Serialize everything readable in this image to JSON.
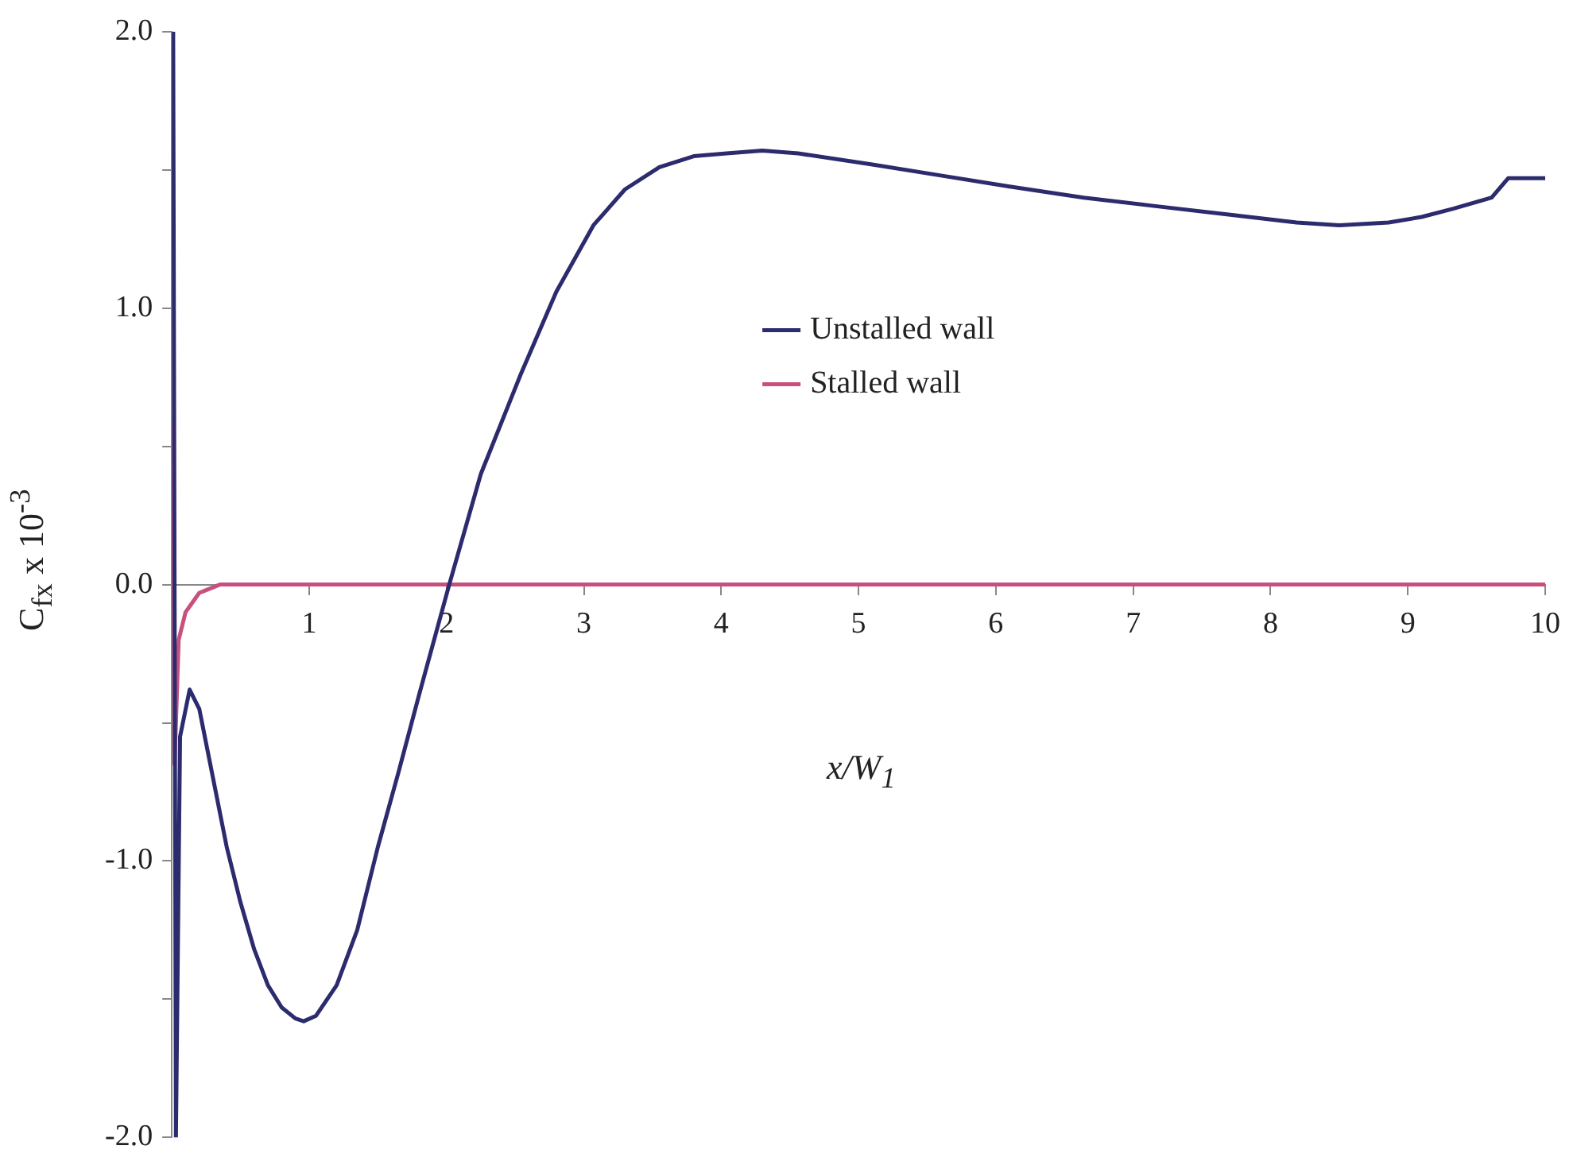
{
  "chart_data": {
    "type": "line",
    "xlabel": "x/W$_{1}$",
    "ylabel": "C$_{fx}$ x 10$^{-3}$",
    "xlim": [
      0,
      10
    ],
    "xticks": [
      1,
      2,
      3,
      4,
      5,
      6,
      7,
      8,
      9,
      10
    ],
    "ylim": [
      -2,
      2
    ],
    "yticks": [
      {
        "value": -2,
        "label": "-2.0"
      },
      {
        "value": -1.5,
        "label": null
      },
      {
        "value": -1,
        "label": "-1.0"
      },
      {
        "value": -0.5,
        "label": null
      },
      {
        "value": 0,
        "label": "0.0"
      },
      {
        "value": 0.5,
        "label": null
      },
      {
        "value": 1,
        "label": "1.0"
      },
      {
        "value": 1.5,
        "label": null
      },
      {
        "value": 2,
        "label": "2.0"
      }
    ],
    "grid": false,
    "legend": "top",
    "marker": "none",
    "line_style": "solid",
    "series": [
      {
        "name": "Unstalled wall",
        "color": "#2b2b6e",
        "x": [
          0.01,
          0.03,
          0.06,
          0.13,
          0.2,
          0.3,
          0.4,
          0.5,
          0.6,
          0.7,
          0.8,
          0.9,
          0.96,
          1.05,
          1.2,
          1.35,
          1.5,
          1.65,
          1.8,
          2.02,
          2.25,
          2.54,
          2.8,
          3.07,
          3.3,
          3.55,
          3.8,
          4.04,
          4.3,
          4.56,
          5.1,
          5.6,
          6.1,
          6.64,
          7.15,
          7.67,
          8.19,
          8.5,
          8.86,
          9.1,
          9.33,
          9.61,
          9.73,
          9.86,
          10
        ],
        "values": [
          2.0,
          -2.0,
          -0.55,
          -0.38,
          -0.45,
          -0.7,
          -0.95,
          -1.15,
          -1.32,
          -1.45,
          -1.53,
          -1.57,
          -1.58,
          -1.56,
          -1.45,
          -1.25,
          -0.95,
          -0.68,
          -0.4,
          0.0,
          0.4,
          0.76,
          1.06,
          1.3,
          1.43,
          1.51,
          1.55,
          1.56,
          1.57,
          1.56,
          1.52,
          1.48,
          1.44,
          1.4,
          1.37,
          1.34,
          1.31,
          1.3,
          1.31,
          1.33,
          1.36,
          1.4,
          1.47,
          1.47,
          1.47
        ]
      },
      {
        "name": "Stalled wall",
        "color": "#c8507f",
        "x": [
          0.01,
          0.02,
          0.05,
          0.1,
          0.2,
          0.35,
          1,
          2,
          3,
          4,
          5,
          6,
          7,
          8,
          9,
          10
        ],
        "values": [
          0.6,
          -0.65,
          -0.2,
          -0.1,
          -0.03,
          0,
          0,
          0,
          0,
          0,
          0,
          0,
          0,
          0,
          0,
          0
        ]
      }
    ]
  }
}
